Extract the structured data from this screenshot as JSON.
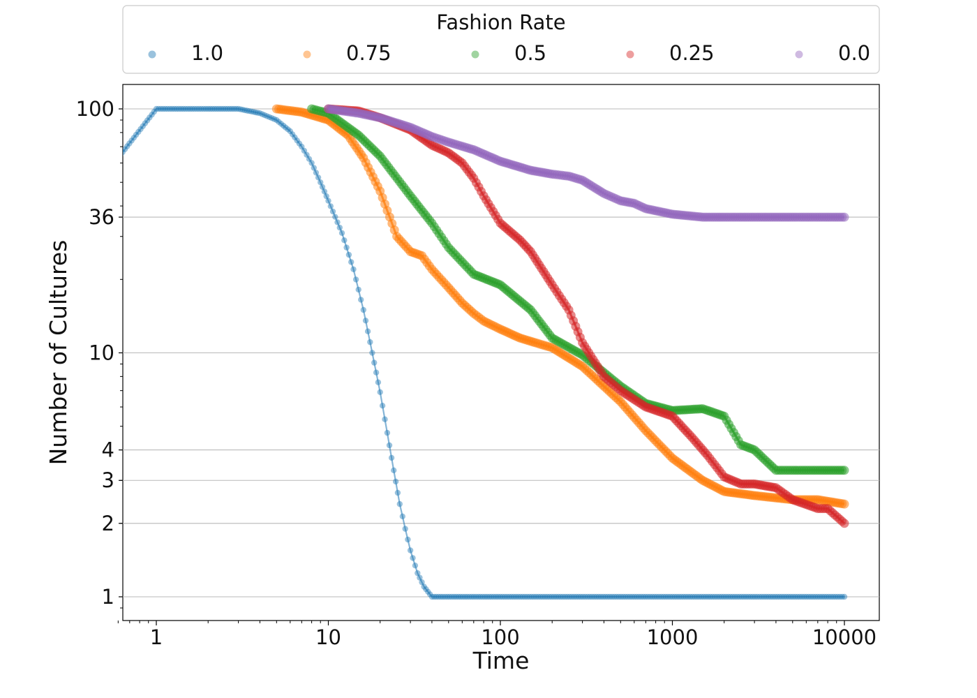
{
  "chart_data": {
    "type": "scatter",
    "title": "",
    "xlabel": "Time",
    "ylabel": "Number of Cultures",
    "xscale": "log",
    "yscale": "log",
    "xlim": [
      0.6,
      11000
    ],
    "ylim": [
      0.85,
      135
    ],
    "xticks": [
      1,
      10,
      100,
      1000,
      10000
    ],
    "xtick_labels": [
      "1",
      "10",
      "100",
      "1000",
      "10000"
    ],
    "yticks": [
      1,
      2,
      3,
      4,
      10,
      36,
      100
    ],
    "ytick_labels": [
      "1",
      "2",
      "3",
      "4",
      "10",
      "36",
      "100"
    ],
    "grid": "horizontal at y ticks",
    "legend": {
      "title": "Fashion Rate",
      "placement": "top, above plot",
      "entries": [
        "1.0",
        "0.75",
        "0.5",
        "0.25",
        "0.0"
      ]
    },
    "series": [
      {
        "name": "1.0",
        "color": "#1f77b4",
        "x": [
          0.6,
          1,
          2,
          3,
          4,
          5,
          6,
          7,
          8,
          9,
          10,
          12,
          14,
          16,
          18,
          20,
          22,
          24,
          26,
          28,
          30,
          33,
          36,
          40,
          100,
          1000,
          10000
        ],
        "y": [
          63,
          100,
          100,
          100,
          96,
          90,
          81,
          70,
          60,
          50,
          42,
          31,
          22,
          15,
          10,
          6.9,
          4.7,
          3.3,
          2.4,
          1.9,
          1.55,
          1.25,
          1.1,
          1,
          1,
          1,
          1
        ]
      },
      {
        "name": "0.75",
        "color": "#ff7f0e",
        "x": [
          5,
          7,
          10,
          13,
          16,
          20,
          25,
          30,
          35,
          40,
          50,
          60,
          70,
          80,
          100,
          130,
          160,
          200,
          300,
          500,
          700,
          1000,
          1500,
          2000,
          3000,
          5000,
          7000,
          10000
        ],
        "y": [
          100,
          97,
          90,
          78,
          63,
          46,
          30,
          26,
          25,
          22,
          18.5,
          16,
          14.5,
          13.5,
          12.5,
          11.5,
          11,
          10.5,
          8.8,
          6.3,
          4.8,
          3.7,
          3.0,
          2.7,
          2.6,
          2.5,
          2.5,
          2.4
        ]
      },
      {
        "name": "0.5",
        "color": "#2ca02c",
        "x": [
          8,
          10,
          15,
          20,
          30,
          40,
          50,
          70,
          100,
          150,
          200,
          300,
          500,
          700,
          1000,
          1500,
          2000,
          2500,
          3000,
          4000,
          5000,
          7000,
          10000
        ],
        "y": [
          100,
          96,
          78,
          64,
          44,
          34,
          27,
          21,
          19,
          15,
          11.5,
          9.8,
          7.3,
          6.2,
          5.8,
          5.9,
          5.5,
          4.2,
          4.0,
          3.3,
          3.3,
          3.3,
          3.3
        ]
      },
      {
        "name": "0.25",
        "color": "#d62728",
        "x": [
          10,
          15,
          20,
          30,
          40,
          50,
          60,
          70,
          80,
          100,
          130,
          150,
          200,
          250,
          300,
          400,
          500,
          700,
          1000,
          1300,
          1600,
          2000,
          2500,
          3000,
          4000,
          5000,
          7000,
          8000,
          10000
        ],
        "y": [
          100,
          98,
          92,
          82,
          71,
          66,
          60,
          52,
          44,
          34,
          29,
          26,
          19,
          15,
          11,
          8,
          7,
          6,
          5.5,
          4.5,
          3.8,
          3.1,
          2.9,
          2.9,
          2.8,
          2.5,
          2.3,
          2.3,
          2.0
        ]
      },
      {
        "name": "0.0",
        "color": "#9467bd",
        "x": [
          10,
          15,
          20,
          30,
          40,
          50,
          70,
          100,
          150,
          200,
          250,
          300,
          400,
          500,
          600,
          700,
          1000,
          1500,
          2000,
          5000,
          10000
        ],
        "y": [
          100,
          96,
          92,
          84,
          77,
          73,
          68,
          61,
          56,
          54,
          53,
          51,
          45,
          42,
          41,
          39,
          37,
          36,
          36,
          36,
          36
        ]
      }
    ]
  }
}
